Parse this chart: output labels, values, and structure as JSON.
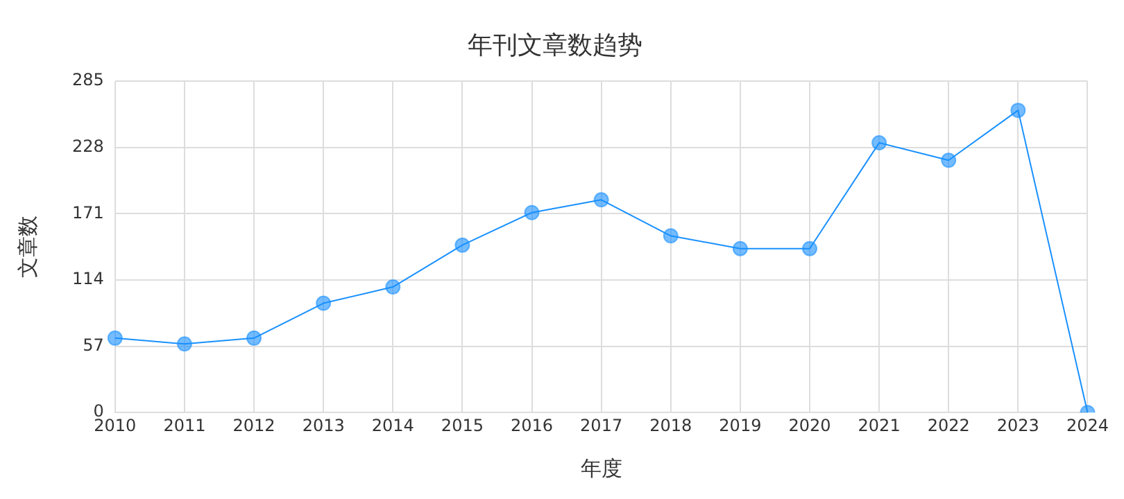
{
  "chart_data": {
    "type": "line",
    "title": "年刊文章数趋势",
    "xlabel": "年度",
    "ylabel": "文章数",
    "categories": [
      "2010",
      "2011",
      "2012",
      "2013",
      "2014",
      "2015",
      "2016",
      "2017",
      "2018",
      "2019",
      "2020",
      "2021",
      "2022",
      "2023",
      "2024"
    ],
    "series": [
      {
        "color": "#1890ff",
        "values": [
          64,
          59,
          64,
          94,
          108,
          144,
          172,
          183,
          152,
          141,
          141,
          232,
          217,
          260,
          0
        ]
      }
    ],
    "ylim": [
      0,
      285
    ],
    "yticks": [
      0,
      57,
      114,
      171,
      228,
      285
    ],
    "grid": true,
    "marker": "circle",
    "line_style": "solid",
    "legend": false
  }
}
